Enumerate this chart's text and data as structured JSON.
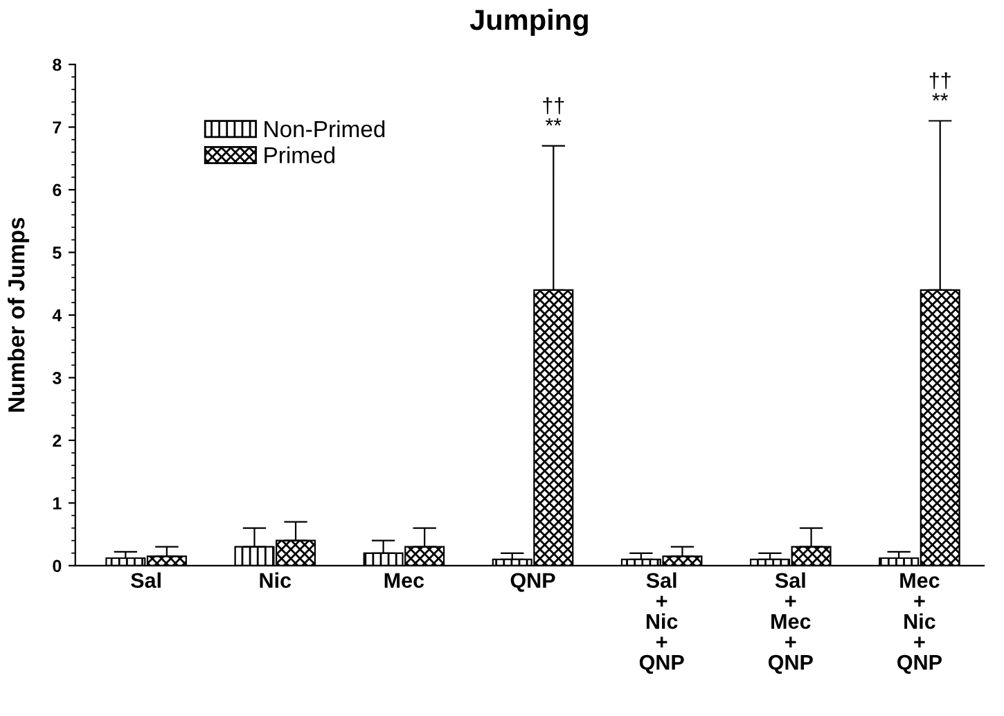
{
  "chart_data": {
    "type": "bar",
    "title": "Jumping",
    "ylabel": "Number of Jumps",
    "categories": [
      "Sal",
      "Nic",
      "Mec",
      "QNP",
      "Sal\n+\nNic\n+\nQNP",
      "Sal\n+\nMec\n+\nQNP",
      "Mec\n+\nNic\n+\nQNP"
    ],
    "series": [
      {
        "name": "Non-Primed",
        "color": "#000000",
        "values": [
          0.12,
          0.3,
          0.2,
          0.1,
          0.1,
          0.1,
          0.12
        ],
        "errors": [
          [
            0.12,
            0.22
          ],
          [
            0.3,
            0.6
          ],
          [
            0.2,
            0.4
          ],
          [
            0.1,
            0.2
          ],
          [
            0.1,
            0.2
          ],
          [
            0.1,
            0.2
          ],
          [
            0.12,
            0.22
          ]
        ]
      },
      {
        "name": "Primed",
        "color": "#000000",
        "values": [
          0.15,
          0.4,
          0.3,
          4.4,
          0.15,
          0.3,
          4.4
        ],
        "errors": [
          [
            0.15,
            0.3
          ],
          [
            0.4,
            0.7
          ],
          [
            0.3,
            0.6
          ],
          [
            4.4,
            6.7
          ],
          [
            0.15,
            0.3
          ],
          [
            0.3,
            0.6
          ],
          [
            4.4,
            7.1
          ]
        ]
      }
    ],
    "annotations": [
      "**",
      "††",
      "**",
      "††"
    ],
    "ylim": [
      0,
      8
    ],
    "yticks": [
      0,
      1,
      2,
      3,
      4,
      5,
      6,
      7,
      8
    ],
    "grid": false,
    "legend": "top left"
  }
}
